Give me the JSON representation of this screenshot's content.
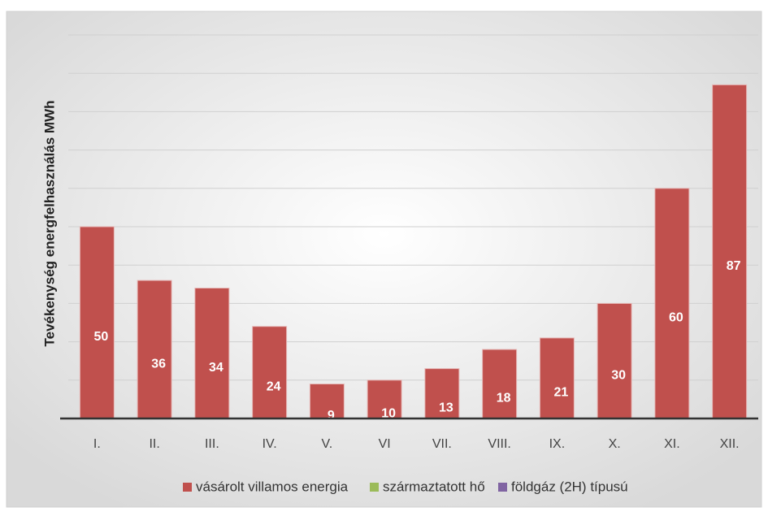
{
  "chart_data": {
    "type": "bar",
    "stacked": true,
    "y_label": "Tevékenység  energfelhasználás MWh",
    "categories": [
      "I.",
      "II.",
      "III.",
      "IV.",
      "V.",
      "VI",
      "VII.",
      "VIII.",
      "IX.",
      "X.",
      "XI.",
      "XII."
    ],
    "series": [
      {
        "name": "vásárolt villamos energia",
        "color": "#c0504d",
        "values": [
          50,
          36,
          34,
          24,
          9,
          10,
          13,
          18,
          21,
          30,
          60,
          87
        ]
      },
      {
        "name": "származtatott hő",
        "color": "#9bbb59",
        "values": [
          0,
          0,
          0,
          0,
          0,
          0,
          0,
          0,
          0,
          0,
          0,
          0
        ]
      },
      {
        "name": "földgáz (2H) típusú",
        "color": "#8064a2",
        "values": [
          0,
          0,
          0,
          0,
          0,
          0,
          0,
          0,
          0,
          0,
          0,
          0
        ]
      }
    ],
    "ylim": [
      0,
      100
    ],
    "yticks": [
      0,
      10,
      20,
      30,
      40,
      50,
      60,
      70,
      80,
      90,
      100
    ],
    "grid": true,
    "legend": "bottom"
  }
}
